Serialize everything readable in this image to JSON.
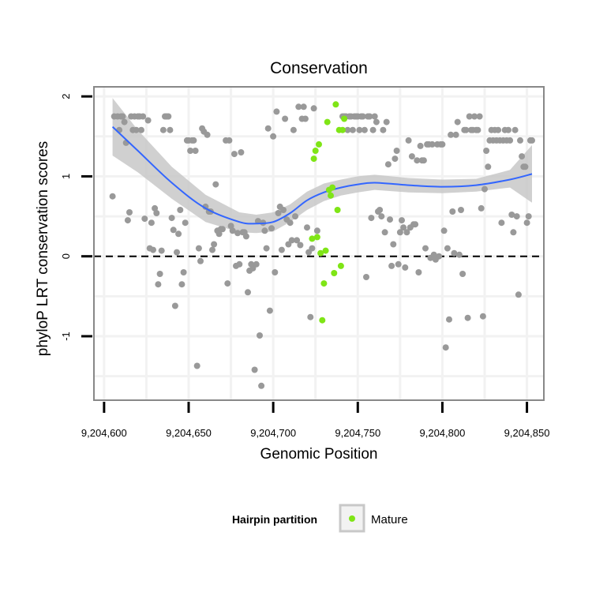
{
  "chart_data": {
    "type": "scatter",
    "title": "Conservation",
    "xlabel": "Genomic Position",
    "ylabel": "phyloP LRT conservation scores",
    "xlim": [
      9204594,
      9204860
    ],
    "ylim": [
      -1.8,
      2.12
    ],
    "x_ticks": [
      9204600,
      9204650,
      9204700,
      9204750,
      9204800,
      9204850
    ],
    "x_tick_labels": [
      "9,204,600",
      "9,204,650",
      "9,204,700",
      "9,204,750",
      "9,204,800",
      "9,204,850"
    ],
    "y_ticks": [
      -1,
      0,
      1,
      2
    ],
    "y_tick_labels": [
      "-1",
      "0",
      "1",
      "2"
    ],
    "grid": true,
    "reference_line": {
      "y": 0,
      "style": "dashed"
    },
    "legend": {
      "title": "Hairpin partition",
      "position": "bottom",
      "entries": [
        "Mature"
      ]
    },
    "colors": {
      "other": "#999999",
      "mature": "#7fe516",
      "smooth": "#3366ff",
      "band": "#c8c8c8",
      "panel_border": "#888888",
      "grid": "#f2f2f2"
    },
    "series": [
      {
        "points": [
          [
            9204605,
            0.75
          ],
          [
            9204606,
            1.75
          ],
          [
            9204608,
            1.75
          ],
          [
            9204609,
            1.58
          ],
          [
            9204610,
            1.75
          ],
          [
            9204611,
            1.75
          ],
          [
            9204612,
            1.68
          ],
          [
            9204613,
            1.42
          ],
          [
            9204614,
            0.45
          ],
          [
            9204615,
            0.55
          ],
          [
            9204616,
            1.75
          ],
          [
            9204617,
            1.58
          ],
          [
            9204618,
            1.75
          ],
          [
            9204619,
            1.58
          ],
          [
            9204620,
            1.75
          ],
          [
            9204621,
            1.75
          ],
          [
            9204622,
            1.58
          ],
          [
            9204623,
            1.75
          ],
          [
            9204624,
            0.47
          ],
          [
            9204626,
            1.7
          ],
          [
            9204627,
            0.1
          ],
          [
            9204628,
            0.42
          ],
          [
            9204629,
            0.08
          ],
          [
            9204630,
            0.6
          ],
          [
            9204631,
            0.54
          ],
          [
            9204632,
            -0.35
          ],
          [
            9204633,
            -0.22
          ],
          [
            9204634,
            0.07
          ],
          [
            9204635,
            1.58
          ],
          [
            9204636,
            1.75
          ],
          [
            9204637,
            1.75
          ],
          [
            9204638,
            1.75
          ],
          [
            9204639,
            1.58
          ],
          [
            9204640,
            0.48
          ],
          [
            9204641,
            0.33
          ],
          [
            9204642,
            -0.62
          ],
          [
            9204643,
            0.05
          ],
          [
            9204644,
            0.28
          ],
          [
            9204645,
            0.58
          ],
          [
            9204646,
            -0.35
          ],
          [
            9204647,
            -0.2
          ],
          [
            9204648,
            0.42
          ],
          [
            9204649,
            1.45
          ],
          [
            9204650,
            1.45
          ],
          [
            9204651,
            1.32
          ],
          [
            9204652,
            1.45
          ],
          [
            9204653,
            1.45
          ],
          [
            9204654,
            1.32
          ],
          [
            9204655,
            -1.37
          ],
          [
            9204656,
            0.1
          ],
          [
            9204657,
            -0.06
          ],
          [
            9204658,
            1.6
          ],
          [
            9204659,
            1.56
          ],
          [
            9204660,
            0.62
          ],
          [
            9204661,
            1.52
          ],
          [
            9204662,
            0.56
          ],
          [
            9204663,
            0.56
          ],
          [
            9204664,
            0.08
          ],
          [
            9204665,
            0.15
          ],
          [
            9204666,
            0.9
          ],
          [
            9204667,
            0.32
          ],
          [
            9204668,
            0.28
          ],
          [
            9204669,
            0.34
          ],
          [
            9204670,
            0.34
          ],
          [
            9204672,
            1.45
          ],
          [
            9204673,
            -0.34
          ],
          [
            9204674,
            1.45
          ],
          [
            9204675,
            0.38
          ],
          [
            9204676,
            0.32
          ],
          [
            9204677,
            1.28
          ],
          [
            9204678,
            -0.12
          ],
          [
            9204679,
            0.29
          ],
          [
            9204680,
            -0.1
          ],
          [
            9204681,
            1.3
          ],
          [
            9204682,
            0.3
          ],
          [
            9204683,
            0.3
          ],
          [
            9204684,
            0.25
          ],
          [
            9204685,
            -0.45
          ],
          [
            9204686,
            -0.18
          ],
          [
            9204687,
            -0.1
          ],
          [
            9204688,
            -0.15
          ],
          [
            9204689,
            -1.42
          ],
          [
            9204690,
            -0.1
          ],
          [
            9204691,
            0.44
          ],
          [
            9204692,
            -0.99
          ],
          [
            9204693,
            -1.62
          ],
          [
            9204694,
            0.42
          ],
          [
            9204695,
            0.32
          ],
          [
            9204696,
            0.1
          ],
          [
            9204697,
            1.6
          ],
          [
            9204698,
            -0.68
          ],
          [
            9204699,
            0.35
          ],
          [
            9204700,
            1.5
          ],
          [
            9204701,
            -0.2
          ],
          [
            9204702,
            1.81
          ],
          [
            9204703,
            0.54
          ],
          [
            9204704,
            0.62
          ],
          [
            9204705,
            0.08
          ],
          [
            9204706,
            0.58
          ],
          [
            9204707,
            1.72
          ],
          [
            9204708,
            0.46
          ],
          [
            9204709,
            0.15
          ],
          [
            9204710,
            0.42
          ],
          [
            9204711,
            0.2
          ],
          [
            9204712,
            1.58
          ],
          [
            9204713,
            0.5
          ],
          [
            9204714,
            0.2
          ],
          [
            9204715,
            1.87
          ],
          [
            9204716,
            0.14
          ],
          [
            9204717,
            1.72
          ],
          [
            9204718,
            1.87
          ],
          [
            9204719,
            1.72
          ],
          [
            9204720,
            0.36
          ],
          [
            9204721,
            0.05
          ],
          [
            9204722,
            -0.76
          ],
          [
            9204723,
            0.1
          ],
          [
            9204724,
            1.85
          ],
          [
            9204726,
            0.32
          ],
          [
            9204741,
            1.75
          ],
          [
            9204742,
            1.75
          ],
          [
            9204743,
            1.75
          ],
          [
            9204744,
            1.58
          ],
          [
            9204745,
            1.75
          ],
          [
            9204746,
            1.75
          ],
          [
            9204747,
            1.58
          ],
          [
            9204748,
            1.75
          ],
          [
            9204749,
            1.75
          ],
          [
            9204750,
            1.75
          ],
          [
            9204751,
            1.58
          ],
          [
            9204752,
            1.75
          ],
          [
            9204753,
            1.75
          ],
          [
            9204754,
            1.58
          ],
          [
            9204755,
            -0.26
          ],
          [
            9204756,
            1.75
          ],
          [
            9204757,
            1.75
          ],
          [
            9204758,
            0.48
          ],
          [
            9204759,
            1.58
          ],
          [
            9204760,
            1.75
          ],
          [
            9204761,
            1.68
          ],
          [
            9204762,
            0.56
          ],
          [
            9204763,
            0.58
          ],
          [
            9204764,
            0.5
          ],
          [
            9204765,
            1.58
          ],
          [
            9204766,
            0.3
          ],
          [
            9204767,
            1.68
          ],
          [
            9204768,
            1.15
          ],
          [
            9204769,
            0.46
          ],
          [
            9204770,
            -0.12
          ],
          [
            9204771,
            0.15
          ],
          [
            9204772,
            1.22
          ],
          [
            9204773,
            1.32
          ],
          [
            9204774,
            -0.1
          ],
          [
            9204775,
            0.3
          ],
          [
            9204776,
            0.45
          ],
          [
            9204777,
            0.36
          ],
          [
            9204778,
            -0.14
          ],
          [
            9204779,
            0.3
          ],
          [
            9204780,
            1.45
          ],
          [
            9204781,
            0.36
          ],
          [
            9204782,
            1.25
          ],
          [
            9204783,
            0.4
          ],
          [
            9204784,
            0.4
          ],
          [
            9204785,
            1.2
          ],
          [
            9204786,
            -0.2
          ],
          [
            9204787,
            1.38
          ],
          [
            9204788,
            1.2
          ],
          [
            9204789,
            1.2
          ],
          [
            9204790,
            0.1
          ],
          [
            9204791,
            1.4
          ],
          [
            9204792,
            1.4
          ],
          [
            9204793,
            -0.02
          ],
          [
            9204794,
            1.4
          ],
          [
            9204795,
            0.02
          ],
          [
            9204796,
            -0.04
          ],
          [
            9204797,
            1.4
          ],
          [
            9204798,
            0.0
          ],
          [
            9204799,
            1.4
          ],
          [
            9204800,
            1.4
          ],
          [
            9204801,
            0.32
          ],
          [
            9204802,
            -1.14
          ],
          [
            9204803,
            0.1
          ],
          [
            9204804,
            -0.79
          ],
          [
            9204805,
            1.52
          ],
          [
            9204806,
            0.56
          ],
          [
            9204807,
            0.04
          ],
          [
            9204808,
            1.52
          ],
          [
            9204809,
            1.68
          ],
          [
            9204810,
            0.02
          ],
          [
            9204811,
            0.58
          ],
          [
            9204812,
            -0.22
          ],
          [
            9204813,
            1.58
          ],
          [
            9204814,
            1.58
          ],
          [
            9204815,
            -0.77
          ],
          [
            9204816,
            1.75
          ],
          [
            9204817,
            1.58
          ],
          [
            9204818,
            1.58
          ],
          [
            9204819,
            1.75
          ],
          [
            9204820,
            1.58
          ],
          [
            9204821,
            1.58
          ],
          [
            9204822,
            1.75
          ],
          [
            9204823,
            0.6
          ],
          [
            9204824,
            -0.75
          ],
          [
            9204825,
            0.84
          ],
          [
            9204826,
            1.32
          ],
          [
            9204827,
            1.12
          ],
          [
            9204828,
            1.45
          ],
          [
            9204829,
            1.58
          ],
          [
            9204830,
            1.45
          ],
          [
            9204831,
            1.58
          ],
          [
            9204832,
            1.45
          ],
          [
            9204833,
            1.58
          ],
          [
            9204834,
            1.45
          ],
          [
            9204835,
            0.42
          ],
          [
            9204836,
            1.45
          ],
          [
            9204837,
            1.58
          ],
          [
            9204838,
            1.45
          ],
          [
            9204839,
            1.58
          ],
          [
            9204840,
            1.45
          ],
          [
            9204841,
            0.52
          ],
          [
            9204842,
            0.3
          ],
          [
            9204843,
            1.58
          ],
          [
            9204844,
            0.5
          ],
          [
            9204845,
            -0.48
          ],
          [
            9204846,
            1.45
          ],
          [
            9204847,
            1.25
          ],
          [
            9204848,
            1.12
          ],
          [
            9204849,
            1.12
          ],
          [
            9204850,
            0.42
          ],
          [
            9204851,
            0.5
          ],
          [
            9204852,
            1.45
          ],
          [
            9204853,
            1.45
          ]
        ]
      },
      {
        "name": "Mature",
        "points": [
          [
            9204723,
            0.22
          ],
          [
            9204724,
            1.22
          ],
          [
            9204725,
            1.32
          ],
          [
            9204726,
            0.24
          ],
          [
            9204727,
            1.4
          ],
          [
            9204728,
            0.04
          ],
          [
            9204729,
            -0.8
          ],
          [
            9204730,
            -0.34
          ],
          [
            9204731,
            0.07
          ],
          [
            9204732,
            1.68
          ],
          [
            9204733,
            0.83
          ],
          [
            9204734,
            0.76
          ],
          [
            9204735,
            0.86
          ],
          [
            9204736,
            -0.21
          ],
          [
            9204737,
            1.9
          ],
          [
            9204738,
            0.58
          ],
          [
            9204739,
            1.58
          ],
          [
            9204740,
            -0.12
          ],
          [
            9204741,
            1.58
          ],
          [
            9204742,
            1.72
          ]
        ]
      }
    ],
    "smooth": {
      "x": [
        9204605,
        9204620,
        9204640,
        9204660,
        9204680,
        9204690,
        9204700,
        9204710,
        9204720,
        9204730,
        9204740,
        9204750,
        9204760,
        9204780,
        9204800,
        9204820,
        9204840,
        9204853
      ],
      "y": [
        1.62,
        1.32,
        0.92,
        0.6,
        0.43,
        0.41,
        0.43,
        0.54,
        0.7,
        0.8,
        0.86,
        0.9,
        0.92,
        0.89,
        0.87,
        0.89,
        0.96,
        1.03
      ],
      "lo": [
        1.26,
        1.05,
        0.72,
        0.43,
        0.3,
        0.29,
        0.31,
        0.43,
        0.58,
        0.69,
        0.76,
        0.8,
        0.83,
        0.8,
        0.79,
        0.81,
        0.86,
        0.67
      ],
      "hi": [
        1.98,
        1.58,
        1.12,
        0.77,
        0.55,
        0.52,
        0.55,
        0.65,
        0.81,
        0.91,
        0.96,
        1.0,
        1.02,
        0.98,
        0.96,
        0.97,
        1.08,
        1.39
      ]
    }
  }
}
